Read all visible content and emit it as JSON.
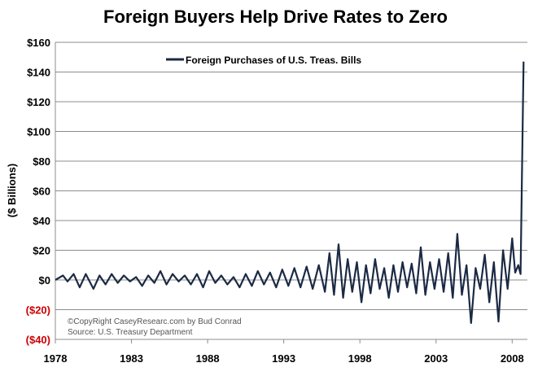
{
  "chart_data": {
    "type": "line",
    "title": "Foreign Buyers Help Drive Rates to Zero",
    "ylabel": "($ Billions)",
    "xlabel": "",
    "ylim": [
      -40,
      160
    ],
    "xlim": [
      1978,
      2009
    ],
    "y_ticks": [
      {
        "value": 160,
        "label": "$160"
      },
      {
        "value": 140,
        "label": "$140"
      },
      {
        "value": 120,
        "label": "$120"
      },
      {
        "value": 100,
        "label": "$100"
      },
      {
        "value": 80,
        "label": "$80"
      },
      {
        "value": 60,
        "label": "$60"
      },
      {
        "value": 40,
        "label": "$40"
      },
      {
        "value": 20,
        "label": "$20"
      },
      {
        "value": 0,
        "label": "$0"
      },
      {
        "value": -20,
        "label": "($20)"
      },
      {
        "value": -40,
        "label": "($40)"
      }
    ],
    "x_ticks": [
      {
        "value": 1978,
        "label": "1978"
      },
      {
        "value": 1983,
        "label": "1983"
      },
      {
        "value": 1988,
        "label": "1988"
      },
      {
        "value": 1993,
        "label": "1993"
      },
      {
        "value": 1998,
        "label": "1998"
      },
      {
        "value": 2003,
        "label": "2003"
      },
      {
        "value": 2008,
        "label": "2008"
      }
    ],
    "grid": true,
    "legend_position": "top-center",
    "series": [
      {
        "name": "Foreign Purchases of U.S. Treas. Bills",
        "color": "#1b2a44",
        "points": [
          [
            1978.0,
            0
          ],
          [
            1978.5,
            3
          ],
          [
            1978.8,
            -1
          ],
          [
            1979.2,
            4
          ],
          [
            1979.6,
            -5
          ],
          [
            1980.0,
            4
          ],
          [
            1980.5,
            -6
          ],
          [
            1980.9,
            3
          ],
          [
            1981.3,
            -3
          ],
          [
            1981.7,
            4
          ],
          [
            1982.1,
            -2
          ],
          [
            1982.5,
            3
          ],
          [
            1982.9,
            -1
          ],
          [
            1983.3,
            2
          ],
          [
            1983.7,
            -4
          ],
          [
            1984.1,
            3
          ],
          [
            1984.5,
            -2
          ],
          [
            1984.9,
            6
          ],
          [
            1985.3,
            -3
          ],
          [
            1985.7,
            4
          ],
          [
            1986.1,
            -1
          ],
          [
            1986.5,
            3
          ],
          [
            1986.9,
            -3
          ],
          [
            1987.3,
            4
          ],
          [
            1987.7,
            -5
          ],
          [
            1988.1,
            6
          ],
          [
            1988.5,
            -2
          ],
          [
            1988.9,
            3
          ],
          [
            1989.3,
            -3
          ],
          [
            1989.7,
            2
          ],
          [
            1990.1,
            -5
          ],
          [
            1990.5,
            4
          ],
          [
            1990.9,
            -4
          ],
          [
            1991.3,
            6
          ],
          [
            1991.7,
            -3
          ],
          [
            1992.1,
            5
          ],
          [
            1992.5,
            -5
          ],
          [
            1992.9,
            7
          ],
          [
            1993.3,
            -4
          ],
          [
            1993.7,
            8
          ],
          [
            1994.1,
            -5
          ],
          [
            1994.5,
            9
          ],
          [
            1994.9,
            -6
          ],
          [
            1995.3,
            10
          ],
          [
            1995.7,
            -8
          ],
          [
            1996.0,
            18
          ],
          [
            1996.3,
            -10
          ],
          [
            1996.6,
            24
          ],
          [
            1996.9,
            -12
          ],
          [
            1997.2,
            14
          ],
          [
            1997.5,
            -8
          ],
          [
            1997.8,
            12
          ],
          [
            1998.1,
            -15
          ],
          [
            1998.4,
            10
          ],
          [
            1998.7,
            -9
          ],
          [
            1999.0,
            14
          ],
          [
            1999.3,
            -6
          ],
          [
            1999.6,
            8
          ],
          [
            1999.9,
            -12
          ],
          [
            2000.2,
            10
          ],
          [
            2000.5,
            -8
          ],
          [
            2000.8,
            12
          ],
          [
            2001.1,
            -5
          ],
          [
            2001.4,
            11
          ],
          [
            2001.7,
            -9
          ],
          [
            2002.0,
            22
          ],
          [
            2002.3,
            -10
          ],
          [
            2002.6,
            12
          ],
          [
            2002.9,
            -6
          ],
          [
            2003.2,
            14
          ],
          [
            2003.5,
            -8
          ],
          [
            2003.8,
            18
          ],
          [
            2004.1,
            -12
          ],
          [
            2004.4,
            31
          ],
          [
            2004.7,
            -10
          ],
          [
            2005.0,
            10
          ],
          [
            2005.3,
            -29
          ],
          [
            2005.6,
            8
          ],
          [
            2005.9,
            -6
          ],
          [
            2006.2,
            17
          ],
          [
            2006.5,
            -15
          ],
          [
            2006.8,
            12
          ],
          [
            2007.1,
            -28
          ],
          [
            2007.4,
            20
          ],
          [
            2007.7,
            -6
          ],
          [
            2008.0,
            28
          ],
          [
            2008.2,
            5
          ],
          [
            2008.4,
            10
          ],
          [
            2008.55,
            4
          ],
          [
            2008.75,
            147
          ]
        ]
      }
    ],
    "annotations": [
      "©CopyRight CaseyResearc.com by Bud Conrad",
      "Source: U.S. Treasury Department"
    ]
  }
}
